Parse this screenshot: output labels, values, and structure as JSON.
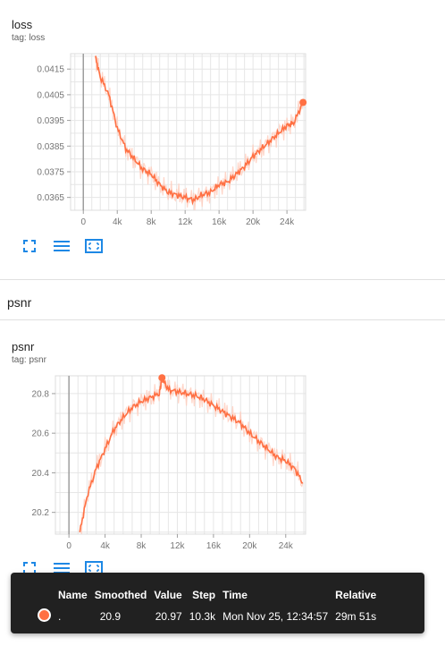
{
  "colors": {
    "accent": "#ff7043",
    "raw": "#ffccbc",
    "icon": "#1e88e5",
    "grid": "#e6e6e6"
  },
  "loss_card": {
    "title": "loss",
    "tag": "tag: loss"
  },
  "psnr_section": {
    "title": "psnr"
  },
  "psnr_card": {
    "title": "psnr",
    "tag": "tag: psnr"
  },
  "toolbar": {
    "icons": [
      "fullscreen-icon",
      "data-table-icon",
      "fit-domain-icon"
    ]
  },
  "tooltip": {
    "headers": {
      "name": "Name",
      "smoothed": "Smoothed",
      "value": "Value",
      "step": "Step",
      "time": "Time",
      "relative": "Relative"
    },
    "row": {
      "name": ".",
      "smoothed": "20.9",
      "value": "20.97",
      "step": "10.3k",
      "time": "Mon Nov 25, 12:34:57",
      "relative": "29m 51s"
    }
  },
  "chart_data": [
    {
      "type": "line",
      "title": "loss",
      "subtitle": "tag: loss",
      "x_ticks": [
        "0",
        "4k",
        "8k",
        "12k",
        "16k",
        "20k",
        "24k"
      ],
      "y_ticks": [
        "0.0365",
        "0.0375",
        "0.0385",
        "0.0395",
        "0.0405",
        "0.0415"
      ],
      "xlim": [
        -1500,
        26200
      ],
      "ylim": [
        0.036,
        0.0421
      ],
      "grid": true,
      "series": [
        {
          "x": [
            1400,
            2000,
            3000,
            4000,
            5000,
            6000,
            7000,
            8000,
            9000,
            10000,
            11000,
            12000,
            13000,
            14000,
            15000,
            16000,
            17000,
            18000,
            19000,
            20000,
            21000,
            22000,
            23000,
            24000,
            24800,
            25900
          ],
          "y": [
            0.042,
            0.0412,
            0.0405,
            0.0392,
            0.0384,
            0.038,
            0.0376,
            0.0374,
            0.037,
            0.0367,
            0.0366,
            0.0365,
            0.0364,
            0.0366,
            0.0367,
            0.037,
            0.0371,
            0.0374,
            0.0377,
            0.0381,
            0.0384,
            0.0387,
            0.039,
            0.0393,
            0.0394,
            0.0402
          ]
        }
      ]
    },
    {
      "type": "line",
      "title": "psnr",
      "subtitle": "tag: psnr",
      "x_ticks": [
        "0",
        "4k",
        "8k",
        "12k",
        "16k",
        "20k",
        "24k"
      ],
      "y_ticks": [
        "20.2",
        "20.4",
        "20.6",
        "20.8"
      ],
      "xlim": [
        -1500,
        26200
      ],
      "ylim": [
        20.09,
        20.89
      ],
      "grid": true,
      "series": [
        {
          "x": [
            1200,
            2000,
            3000,
            4000,
            5000,
            6000,
            7000,
            8000,
            9000,
            10000,
            10300,
            11000,
            12000,
            13000,
            14000,
            15000,
            16000,
            17000,
            18000,
            19000,
            20000,
            21000,
            22000,
            23000,
            24000,
            25000,
            25900
          ],
          "y": [
            20.1,
            20.28,
            20.42,
            20.52,
            20.62,
            20.68,
            20.73,
            20.76,
            20.78,
            20.8,
            20.88,
            20.82,
            20.81,
            20.8,
            20.79,
            20.77,
            20.74,
            20.71,
            20.68,
            20.65,
            20.6,
            20.56,
            20.52,
            20.48,
            20.46,
            20.42,
            20.35
          ]
        }
      ]
    }
  ]
}
